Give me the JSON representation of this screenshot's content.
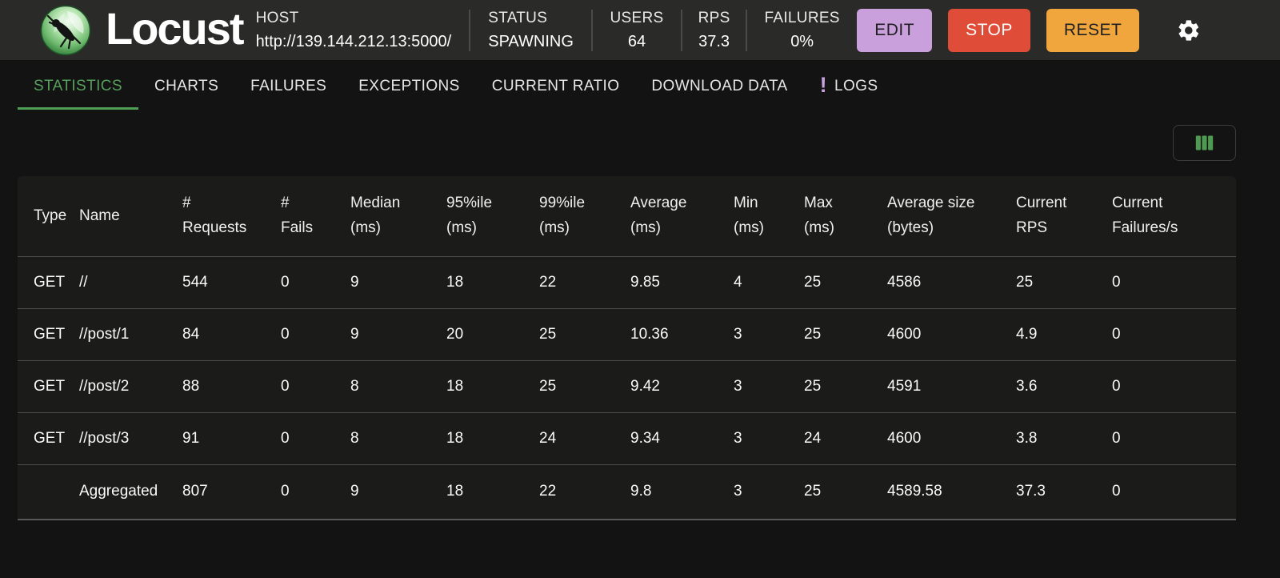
{
  "header": {
    "app_name": "Locust",
    "host": {
      "label": "HOST",
      "value": "http://139.144.212.13:5000/"
    },
    "stats": [
      {
        "label": "STATUS",
        "value": "SPAWNING"
      },
      {
        "label": "USERS",
        "value": "64"
      },
      {
        "label": "RPS",
        "value": "37.3"
      },
      {
        "label": "FAILURES",
        "value": "0%"
      }
    ],
    "buttons": [
      {
        "label": "EDIT"
      },
      {
        "label": "STOP"
      },
      {
        "label": "RESET"
      }
    ]
  },
  "tabs": {
    "items": [
      {
        "label": "STATISTICS",
        "active": true
      },
      {
        "label": "CHARTS"
      },
      {
        "label": "FAILURES"
      },
      {
        "label": "EXCEPTIONS"
      },
      {
        "label": "CURRENT RATIO"
      },
      {
        "label": "DOWNLOAD DATA"
      },
      {
        "label": "LOGS",
        "badge": "!"
      }
    ]
  },
  "icons": {
    "logo": "locust-insect-on-green-sphere",
    "settings": "gear",
    "columns": "view-columns-three-bars",
    "logs_badge": "exclamation-mark"
  },
  "colors": {
    "header_bg": "#2a2a29",
    "page_bg": "#131313",
    "accent_green": "#56a05b",
    "edit_button": "#c9a0dc",
    "stop_button": "#df4d39",
    "reset_button": "#f0a63d",
    "logs_badge": "#c9a1e0",
    "columns_icon": "#4f9a52"
  },
  "table": {
    "headers": [
      "Type",
      "Name",
      "#\nRequests",
      "#\nFails",
      "Median\n(ms)",
      "95%ile\n(ms)",
      "99%ile\n(ms)",
      "Average\n(ms)",
      "Min\n(ms)",
      "Max\n(ms)",
      "Average size\n(bytes)",
      "Current\nRPS",
      "Current\nFailures/s"
    ],
    "rows": [
      [
        "GET",
        "//",
        "544",
        "0",
        "9",
        "18",
        "22",
        "9.85",
        "4",
        "25",
        "4586",
        "25",
        "0"
      ],
      [
        "GET",
        "//post/1",
        "84",
        "0",
        "9",
        "20",
        "25",
        "10.36",
        "3",
        "25",
        "4600",
        "4.9",
        "0"
      ],
      [
        "GET",
        "//post/2",
        "88",
        "0",
        "8",
        "18",
        "25",
        "9.42",
        "3",
        "25",
        "4591",
        "3.6",
        "0"
      ],
      [
        "GET",
        "//post/3",
        "91",
        "0",
        "8",
        "18",
        "24",
        "9.34",
        "3",
        "24",
        "4600",
        "3.8",
        "0"
      ],
      [
        "",
        "Aggregated",
        "807",
        "0",
        "9",
        "18",
        "22",
        "9.8",
        "3",
        "25",
        "4589.58",
        "37.3",
        "0"
      ]
    ]
  }
}
